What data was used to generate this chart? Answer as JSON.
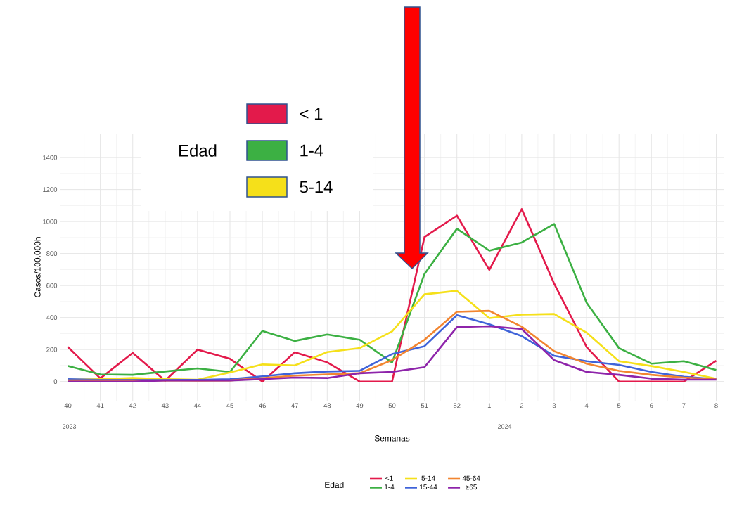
{
  "chart_data": {
    "type": "line",
    "xlabel": "Semanas",
    "ylabel": "Casos/100.000h",
    "legend_title": "Edad",
    "categories": [
      "40",
      "41",
      "42",
      "43",
      "44",
      "45",
      "46",
      "47",
      "48",
      "49",
      "50",
      "51",
      "52",
      "1",
      "2",
      "3",
      "4",
      "5",
      "6",
      "7",
      "8"
    ],
    "series": [
      {
        "name": "<1",
        "color": "#e31a4b",
        "values": [
          216,
          20,
          179,
          5,
          200,
          142,
          0,
          183,
          120,
          0,
          0,
          903,
          1037,
          698,
          1078,
          612,
          216,
          0,
          0,
          0,
          130
        ]
      },
      {
        "name": "1-4",
        "color": "#3cb043",
        "values": [
          97,
          45,
          42,
          63,
          82,
          60,
          316,
          254,
          294,
          261,
          119,
          672,
          955,
          818,
          869,
          985,
          493,
          209,
          112,
          127,
          72
        ]
      },
      {
        "name": "5-14",
        "color": "#f5e01a",
        "values": [
          12,
          15,
          22,
          15,
          12,
          57,
          107,
          101,
          184,
          209,
          313,
          545,
          567,
          396,
          418,
          422,
          306,
          127,
          97,
          60,
          18
        ]
      },
      {
        "name": "15-44",
        "color": "#3f63d9",
        "values": [
          15,
          10,
          10,
          10,
          10,
          15,
          33,
          52,
          63,
          67,
          172,
          221,
          415,
          358,
          284,
          161,
          127,
          104,
          60,
          30,
          15
        ]
      },
      {
        "name": "45-64",
        "color": "#f28530",
        "values": [
          7,
          7,
          7,
          7,
          5,
          7,
          22,
          37,
          45,
          52,
          134,
          261,
          436,
          442,
          343,
          190,
          112,
          67,
          42,
          25,
          15
        ]
      },
      {
        "name": "≥65",
        "color": "#8e24aa",
        "values": [
          0,
          0,
          0,
          7,
          7,
          7,
          15,
          25,
          22,
          52,
          60,
          90,
          340,
          346,
          328,
          134,
          60,
          42,
          18,
          12,
          12
        ]
      }
    ],
    "ylim": [
      -120,
      1550
    ],
    "yticks": [
      0,
      200,
      400,
      600,
      800,
      1000,
      1200,
      1400
    ],
    "grid": true,
    "legend": "bottom",
    "marker": "none",
    "line_style": "solid",
    "annotations": [
      "2023",
      "2024",
      "< 1",
      "1-4",
      "5-14"
    ]
  }
}
